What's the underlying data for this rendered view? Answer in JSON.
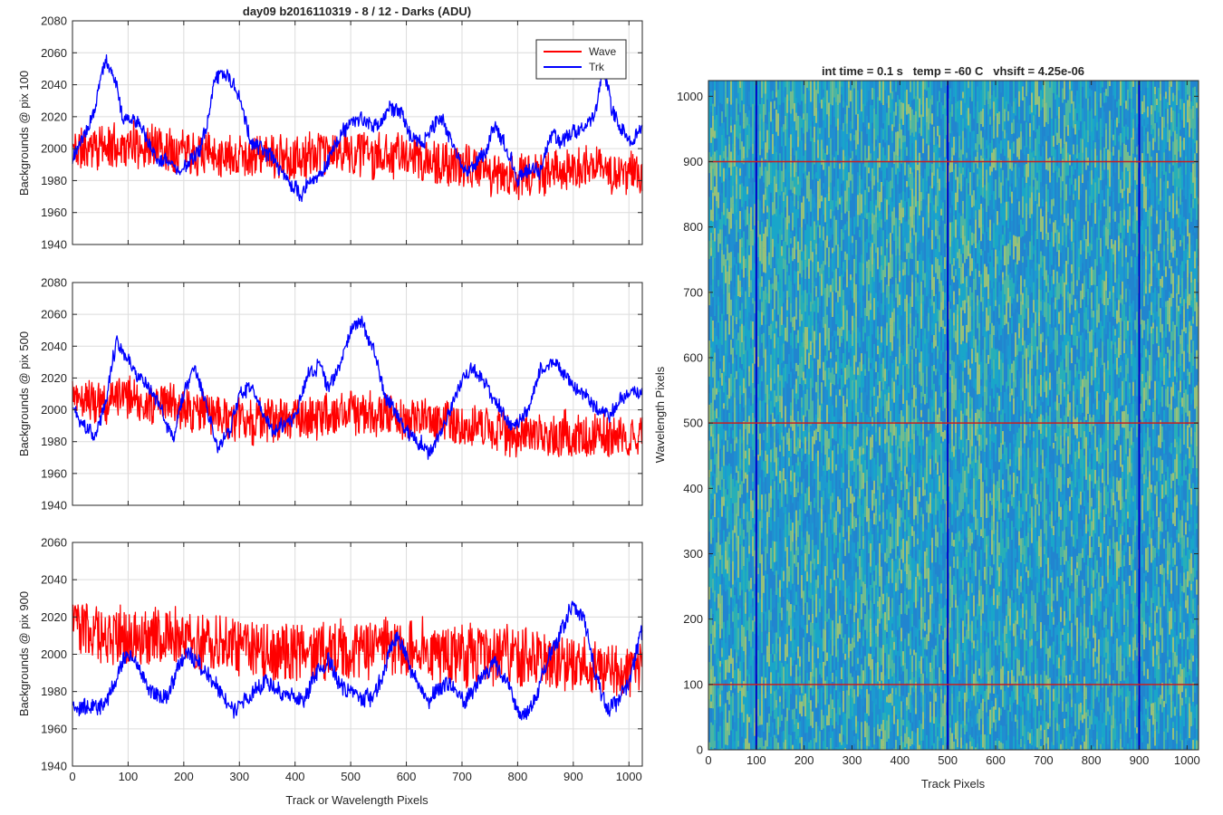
{
  "figure_title": "day09 b2016110319 - 8 / 12 - Darks (ADU)",
  "chart_data": [
    {
      "type": "line",
      "id": "p100",
      "title": "day09 b2016110319 - 8 / 12 - Darks (ADU)",
      "xlabel": "",
      "ylabel": "Backgrounds @ pix 100",
      "xlim": [
        0,
        1024
      ],
      "ylim": [
        1940,
        2080
      ],
      "xticks": [
        "0",
        "100",
        "200",
        "300",
        "400",
        "500",
        "600",
        "700",
        "800",
        "900",
        "1000"
      ],
      "yticks": [
        "1940",
        "1960",
        "1980",
        "2000",
        "2020",
        "2040",
        "2060",
        "2080"
      ],
      "grid": true,
      "legend": {
        "placement": "top-right",
        "entries": [
          "Wave",
          "Trk"
        ]
      },
      "series": [
        {
          "name": "Wave",
          "color": "#ff0000",
          "noise": 13,
          "seed": 11,
          "keys": [
            [
              0,
              2000
            ],
            [
              100,
              2002
            ],
            [
              200,
              2000
            ],
            [
              300,
              1996
            ],
            [
              400,
              1994
            ],
            [
              500,
              1998
            ],
            [
              600,
              1995
            ],
            [
              700,
              1988
            ],
            [
              800,
              1982
            ],
            [
              900,
              1988
            ],
            [
              1024,
              1985
            ]
          ]
        },
        {
          "name": "Trk",
          "color": "#0000ff",
          "noise": 4,
          "seed": 23,
          "keys": [
            [
              0,
              1995
            ],
            [
              20,
              2005
            ],
            [
              40,
              2025
            ],
            [
              60,
              2058
            ],
            [
              75,
              2045
            ],
            [
              90,
              2020
            ],
            [
              110,
              2018
            ],
            [
              130,
              2010
            ],
            [
              150,
              1995
            ],
            [
              170,
              1992
            ],
            [
              200,
              1985
            ],
            [
              220,
              1995
            ],
            [
              240,
              2010
            ],
            [
              255,
              2045
            ],
            [
              275,
              2048
            ],
            [
              290,
              2040
            ],
            [
              300,
              2032
            ],
            [
              320,
              2005
            ],
            [
              340,
              2000
            ],
            [
              360,
              1993
            ],
            [
              380,
              1985
            ],
            [
              410,
              1968
            ],
            [
              430,
              1982
            ],
            [
              450,
              1985
            ],
            [
              470,
              2002
            ],
            [
              490,
              2012
            ],
            [
              520,
              2018
            ],
            [
              550,
              2015
            ],
            [
              570,
              2025
            ],
            [
              590,
              2022
            ],
            [
              610,
              2008
            ],
            [
              630,
              2005
            ],
            [
              660,
              2020
            ],
            [
              690,
              2000
            ],
            [
              710,
              1985
            ],
            [
              740,
              1996
            ],
            [
              760,
              2015
            ],
            [
              780,
              2000
            ],
            [
              800,
              1982
            ],
            [
              820,
              1990
            ],
            [
              840,
              1985
            ],
            [
              860,
              2010
            ],
            [
              880,
              2005
            ],
            [
              900,
              2010
            ],
            [
              920,
              2012
            ],
            [
              940,
              2025
            ],
            [
              955,
              2050
            ],
            [
              970,
              2025
            ],
            [
              990,
              2010
            ],
            [
              1010,
              2005
            ],
            [
              1024,
              2015
            ]
          ]
        }
      ]
    },
    {
      "type": "line",
      "id": "p500",
      "title": "",
      "xlabel": "",
      "ylabel": "Backgrounds @ pix 500",
      "xlim": [
        0,
        1024
      ],
      "ylim": [
        1940,
        2080
      ],
      "xticks": [
        "0",
        "100",
        "200",
        "300",
        "400",
        "500",
        "600",
        "700",
        "800",
        "900",
        "1000"
      ],
      "yticks": [
        "1940",
        "1960",
        "1980",
        "2000",
        "2020",
        "2040",
        "2060",
        "2080"
      ],
      "grid": true,
      "series": [
        {
          "name": "Wave",
          "color": "#ff0000",
          "noise": 13,
          "seed": 37,
          "keys": [
            [
              0,
              2005
            ],
            [
              100,
              2008
            ],
            [
              200,
              2000
            ],
            [
              300,
              1993
            ],
            [
              400,
              1995
            ],
            [
              500,
              1998
            ],
            [
              600,
              1995
            ],
            [
              700,
              1990
            ],
            [
              800,
              1985
            ],
            [
              900,
              1985
            ],
            [
              1024,
              1982
            ]
          ]
        },
        {
          "name": "Trk",
          "color": "#0000ff",
          "noise": 4,
          "seed": 41,
          "keys": [
            [
              0,
              2000
            ],
            [
              20,
              1992
            ],
            [
              40,
              1982
            ],
            [
              60,
              2005
            ],
            [
              80,
              2045
            ],
            [
              100,
              2030
            ],
            [
              120,
              2020
            ],
            [
              140,
              2015
            ],
            [
              160,
              2000
            ],
            [
              180,
              1980
            ],
            [
              200,
              2010
            ],
            [
              220,
              2025
            ],
            [
              240,
              2005
            ],
            [
              260,
              1975
            ],
            [
              280,
              1985
            ],
            [
              300,
              2010
            ],
            [
              320,
              2015
            ],
            [
              340,
              2000
            ],
            [
              360,
              1985
            ],
            [
              380,
              1990
            ],
            [
              400,
              1995
            ],
            [
              420,
              2020
            ],
            [
              440,
              2030
            ],
            [
              460,
              2015
            ],
            [
              480,
              2025
            ],
            [
              500,
              2050
            ],
            [
              520,
              2055
            ],
            [
              540,
              2040
            ],
            [
              560,
              2010
            ],
            [
              580,
              2000
            ],
            [
              600,
              1985
            ],
            [
              620,
              1980
            ],
            [
              640,
              1975
            ],
            [
              660,
              1985
            ],
            [
              680,
              2000
            ],
            [
              700,
              2018
            ],
            [
              720,
              2025
            ],
            [
              740,
              2018
            ],
            [
              760,
              2005
            ],
            [
              780,
              1995
            ],
            [
              800,
              1990
            ],
            [
              820,
              2000
            ],
            [
              840,
              2025
            ],
            [
              860,
              2030
            ],
            [
              880,
              2025
            ],
            [
              900,
              2015
            ],
            [
              920,
              2010
            ],
            [
              940,
              2000
            ],
            [
              960,
              1995
            ],
            [
              980,
              2005
            ],
            [
              1000,
              2012
            ],
            [
              1024,
              2010
            ]
          ]
        }
      ]
    },
    {
      "type": "line",
      "id": "p900",
      "title": "",
      "xlabel": "Track or Wavelength Pixels",
      "ylabel": "Backgrounds @ pix 900",
      "xlim": [
        0,
        1024
      ],
      "ylim": [
        1940,
        2060
      ],
      "xticks": [
        "0",
        "100",
        "200",
        "300",
        "400",
        "500",
        "600",
        "700",
        "800",
        "900",
        "1000"
      ],
      "yticks": [
        "1940",
        "1960",
        "1980",
        "2000",
        "2020",
        "2040",
        "2060"
      ],
      "grid": true,
      "series": [
        {
          "name": "Wave",
          "color": "#ff0000",
          "noise": 15,
          "seed": 53,
          "keys": [
            [
              0,
              2015
            ],
            [
              100,
              2010
            ],
            [
              200,
              2008
            ],
            [
              300,
              2005
            ],
            [
              400,
              2000
            ],
            [
              500,
              2002
            ],
            [
              600,
              2003
            ],
            [
              700,
              2000
            ],
            [
              800,
              2000
            ],
            [
              900,
              1995
            ],
            [
              1024,
              1992
            ]
          ]
        },
        {
          "name": "Trk",
          "color": "#0000ff",
          "noise": 4,
          "seed": 67,
          "keys": [
            [
              0,
              1972
            ],
            [
              30,
              1970
            ],
            [
              60,
              1975
            ],
            [
              90,
              1995
            ],
            [
              110,
              2000
            ],
            [
              130,
              1985
            ],
            [
              150,
              1975
            ],
            [
              170,
              1975
            ],
            [
              190,
              1995
            ],
            [
              210,
              2000
            ],
            [
              240,
              1990
            ],
            [
              270,
              1978
            ],
            [
              290,
              1970
            ],
            [
              320,
              1978
            ],
            [
              350,
              1985
            ],
            [
              380,
              1980
            ],
            [
              400,
              1975
            ],
            [
              420,
              1978
            ],
            [
              440,
              1992
            ],
            [
              460,
              1995
            ],
            [
              480,
              1982
            ],
            [
              500,
              1980
            ],
            [
              520,
              1975
            ],
            [
              540,
              1980
            ],
            [
              560,
              1990
            ],
            [
              580,
              2010
            ],
            [
              600,
              2000
            ],
            [
              620,
              1985
            ],
            [
              640,
              1975
            ],
            [
              660,
              1982
            ],
            [
              680,
              1985
            ],
            [
              700,
              1975
            ],
            [
              720,
              1980
            ],
            [
              740,
              1990
            ],
            [
              760,
              1995
            ],
            [
              780,
              1985
            ],
            [
              800,
              1970
            ],
            [
              820,
              1968
            ],
            [
              840,
              1985
            ],
            [
              860,
              2000
            ],
            [
              880,
              2015
            ],
            [
              900,
              2025
            ],
            [
              920,
              2018
            ],
            [
              940,
              1990
            ],
            [
              960,
              1970
            ],
            [
              980,
              1975
            ],
            [
              1000,
              1985
            ],
            [
              1024,
              2010
            ]
          ]
        }
      ]
    },
    {
      "type": "heatmap",
      "id": "img",
      "title": "int time = 0.1 s   temp = -60 C   vhsift = 4.25e-06",
      "xlabel": "Track Pixels",
      "ylabel": "Wavelength Pixels",
      "xlim": [
        0,
        1024
      ],
      "ylim": [
        0,
        1024
      ],
      "xticks": [
        "0",
        "100",
        "200",
        "300",
        "400",
        "500",
        "600",
        "700",
        "800",
        "900",
        "1000"
      ],
      "yticks": [
        "0",
        "100",
        "200",
        "300",
        "400",
        "500",
        "600",
        "700",
        "800",
        "900",
        "1000"
      ],
      "colors": {
        "low": "#1f78c8",
        "mid": "#1aa0c8",
        "high": "#7dbe8a"
      },
      "vertical_lines": {
        "x": [
          100,
          500,
          900
        ],
        "color": "#0000c8"
      },
      "horizontal_lines": {
        "y": [
          100,
          500,
          900
        ],
        "color": "#c81e1e"
      }
    }
  ]
}
